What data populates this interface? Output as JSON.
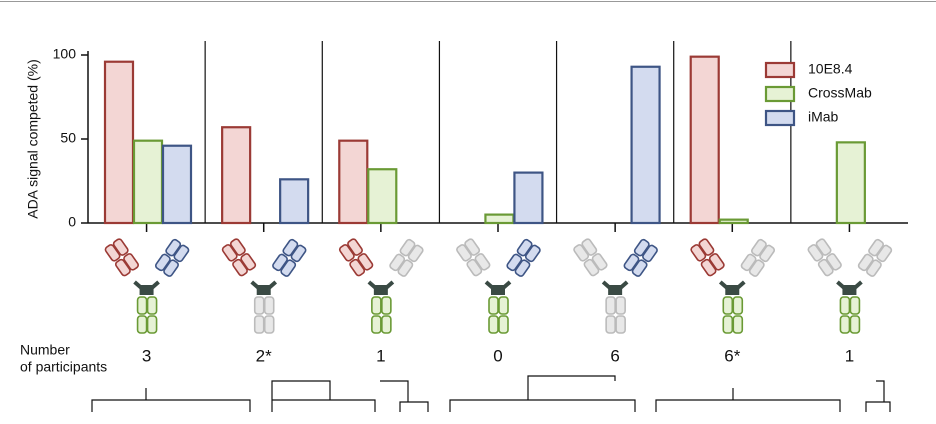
{
  "chart_data": {
    "type": "bar",
    "y_label": "ADA signal competed (%)",
    "categories": [
      null,
      null,
      null,
      null,
      null,
      null,
      null
    ],
    "series": [
      {
        "name": "10E8.4",
        "color": "#9b3a35",
        "fill": "#f3d6d4",
        "values": [
          96,
          57,
          49,
          null,
          null,
          99,
          null
        ]
      },
      {
        "name": "CrossMab",
        "color": "#6a9a35",
        "fill": "#e6f2d5",
        "values": [
          49,
          null,
          32,
          5,
          null,
          2,
          48
        ]
      },
      {
        "name": "iMab",
        "color": "#3e5585",
        "fill": "#d3dbef",
        "values": [
          46,
          26,
          null,
          30,
          93,
          null,
          null
        ]
      }
    ],
    "ylim": [
      0,
      100
    ],
    "yticks": [
      0,
      50,
      100
    ],
    "legend": "top-right",
    "participants_label": [
      "Number",
      "of participants"
    ],
    "participants": [
      "3",
      "2*",
      "1",
      "0",
      "6",
      "6*",
      "1"
    ]
  }
}
